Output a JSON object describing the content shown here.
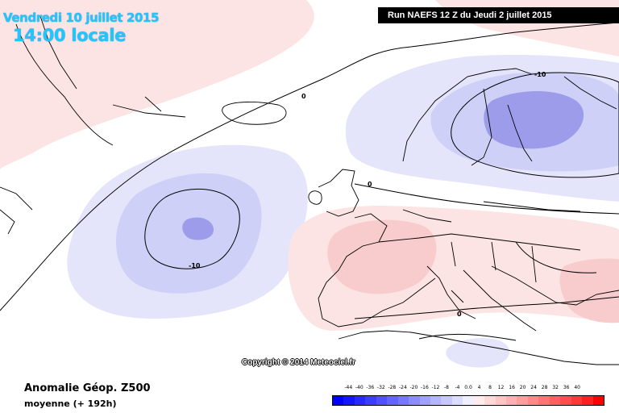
{
  "header": {
    "date": "Vendredi 10 juillet 2015",
    "local_time": "14:00 locale",
    "run": "Run NAEFS 12 Z du Jeudi 2 juillet 2015"
  },
  "map": {
    "contour_labels": [
      "0",
      "-10",
      "0",
      "-10",
      "0"
    ],
    "copyright": "Copyright © 2014 Meteociel.fr"
  },
  "footer": {
    "variable": "Anomalie Géop. Z500",
    "mean": "moyenne (+ 192h)"
  },
  "scale": {
    "ticks": [
      "-44",
      "-40",
      "-36",
      "-32",
      "-28",
      "-24",
      "-20",
      "-16",
      "-12",
      "-8",
      "-4",
      "0.0",
      "4",
      "8",
      "12",
      "16",
      "20",
      "24",
      "28",
      "32",
      "36",
      "40"
    ],
    "colors": [
      "#0000ff",
      "#1414ff",
      "#2828ff",
      "#3c3cff",
      "#5050ff",
      "#6464ff",
      "#7878ff",
      "#8c8cff",
      "#a0a0ff",
      "#b4b4ff",
      "#c8c8ff",
      "#dcdcff",
      "#f0f0ff",
      "#ffecec",
      "#ffd8d8",
      "#ffc4c4",
      "#ffb0b0",
      "#ff9c9c",
      "#ff8888",
      "#ff7474",
      "#ff6060",
      "#ff4c4c",
      "#ff3838",
      "#ff2020",
      "#ff0000"
    ]
  },
  "fills": {
    "background": "#ffffff",
    "neg_light": "#e4e4fb",
    "neg_mid": "#cfd0f7",
    "neg_dark": "#b3b3f0",
    "neg_core": "#9c9ceb",
    "pos_light": "#fde4e4",
    "pos_mid": "#f8cccc",
    "coast": "#000000",
    "contour": "#000000"
  }
}
